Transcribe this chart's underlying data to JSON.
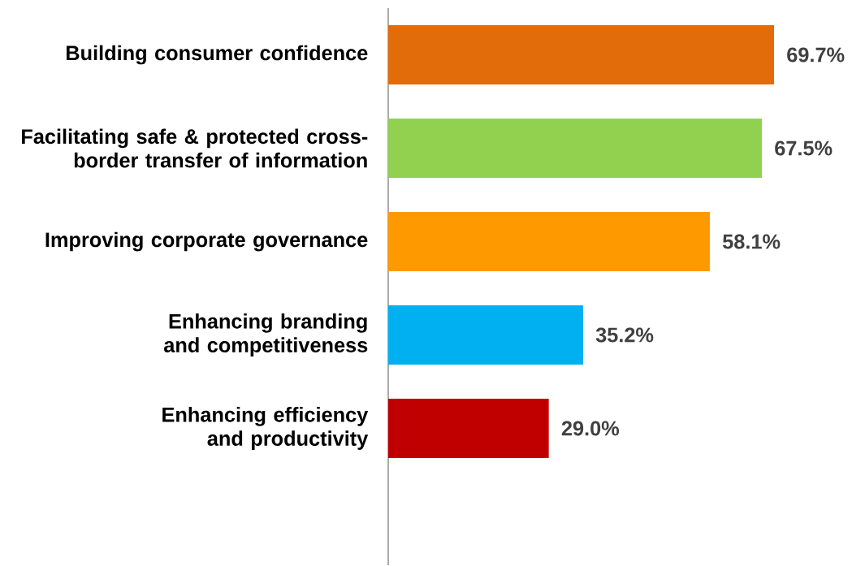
{
  "chart_data": {
    "type": "bar",
    "orientation": "horizontal",
    "categories": [
      "Building consumer confidence",
      "Facilitating safe & protected cross-border transfer of information",
      "Improving corporate governance",
      "Enhancing branding and competitiveness",
      "Enhancing efficiency and productivity"
    ],
    "values": [
      69.7,
      67.5,
      58.1,
      35.2,
      29.0
    ],
    "value_labels": [
      "69.7%",
      "67.5%",
      "58.1%",
      "35.2%",
      "29.0%"
    ],
    "colors": [
      "#e36c0a",
      "#92d050",
      "#ff9900",
      "#00b0f0",
      "#c00000"
    ]
  }
}
